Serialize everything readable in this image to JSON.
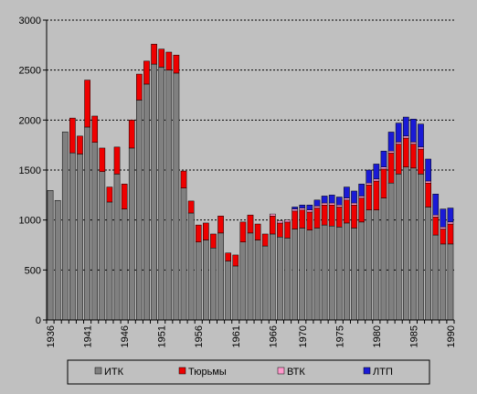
{
  "chart_data": {
    "type": "bar",
    "stacked": true,
    "categories": [
      "1936",
      null,
      null,
      null,
      null,
      "1941",
      null,
      null,
      null,
      null,
      "1946",
      null,
      null,
      null,
      null,
      "1951",
      null,
      null,
      null,
      null,
      "1956",
      null,
      null,
      null,
      null,
      "1961",
      null,
      null,
      null,
      null,
      "1966",
      null,
      null,
      null,
      "1970",
      null,
      null,
      null,
      null,
      "1975",
      null,
      null,
      null,
      null,
      "1980",
      null,
      null,
      null,
      null,
      "1985",
      null,
      null,
      null,
      null,
      "1990"
    ],
    "series": [
      {
        "name": "ИТК",
        "color": "#808080",
        "values": [
          1296,
          1196,
          1881,
          1672,
          1660,
          1930,
          1777,
          1484,
          1180,
          1460,
          1110,
          1720,
          2200,
          2360,
          2560,
          2530,
          2500,
          2470,
          1320,
          1070,
          780,
          800,
          720,
          870,
          590,
          540,
          780,
          870,
          800,
          740,
          860,
          830,
          820,
          910,
          920,
          900,
          920,
          950,
          940,
          930,
          970,
          920,
          980,
          1100,
          1100,
          1220,
          1370,
          1460,
          1530,
          1520,
          1460,
          1130,
          850,
          760,
          760
        ]
      },
      {
        "name": "Тюрьмы",
        "color": "#ee0000",
        "values": [
          0,
          0,
          0,
          348,
          180,
          470,
          263,
          236,
          150,
          270,
          250,
          280,
          260,
          230,
          200,
          180,
          180,
          180,
          170,
          120,
          170,
          170,
          140,
          170,
          80,
          110,
          200,
          180,
          160,
          120,
          180,
          140,
          160,
          180,
          180,
          180,
          200,
          200,
          210,
          200,
          230,
          230,
          240,
          250,
          290,
          290,
          300,
          300,
          290,
          240,
          250,
          240,
          180,
          150,
          200
        ]
      },
      {
        "name": "ВТК",
        "color": "#ff99cc",
        "values": [
          0,
          0,
          0,
          0,
          0,
          0,
          0,
          0,
          0,
          0,
          0,
          0,
          0,
          0,
          0,
          0,
          0,
          0,
          0,
          0,
          0,
          0,
          0,
          0,
          0,
          0,
          0,
          0,
          0,
          0,
          20,
          20,
          20,
          20,
          20,
          20,
          20,
          20,
          20,
          20,
          20,
          20,
          20,
          20,
          20,
          20,
          20,
          20,
          20,
          20,
          20,
          20,
          20,
          20,
          20
        ]
      },
      {
        "name": "ЛТП",
        "color": "#1a1ad6",
        "values": [
          0,
          0,
          0,
          0,
          0,
          0,
          0,
          0,
          0,
          0,
          0,
          0,
          0,
          0,
          0,
          0,
          0,
          0,
          0,
          0,
          0,
          0,
          0,
          0,
          0,
          0,
          0,
          0,
          0,
          0,
          0,
          0,
          0,
          20,
          30,
          50,
          60,
          70,
          80,
          80,
          110,
          120,
          120,
          130,
          150,
          160,
          190,
          190,
          190,
          230,
          230,
          220,
          210,
          180,
          140
        ]
      }
    ],
    "ylim": [
      0,
      3000
    ],
    "yticks": [
      0,
      500,
      1000,
      1500,
      2000,
      2500,
      3000
    ],
    "grid": true,
    "legend": "bottom"
  }
}
